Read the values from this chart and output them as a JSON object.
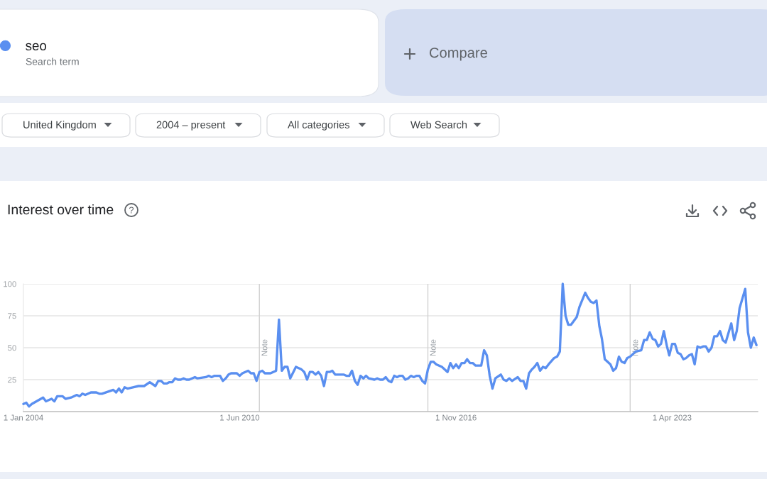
{
  "chart_data": {
    "type": "line",
    "title": "Interest over time",
    "series": [
      {
        "name": "seo",
        "color": "#5a8ff0",
        "x": [
          "2004-01",
          "2004-02",
          "2004-03",
          "2004-04",
          "2004-08",
          "2004-09",
          "2004-11",
          "2004-12",
          "2005-01",
          "2005-03",
          "2005-04",
          "2005-06",
          "2005-08",
          "2005-09",
          "2005-10",
          "2005-11",
          "2006-01",
          "2006-03",
          "2006-04",
          "2006-05",
          "2006-09",
          "2006-10",
          "2006-11",
          "2006-12",
          "2007-01",
          "2007-02",
          "2007-04",
          "2007-06",
          "2007-08",
          "2007-10",
          "2007-12",
          "2008-01",
          "2008-02",
          "2008-03",
          "2008-04",
          "2008-05",
          "2008-06",
          "2008-07",
          "2008-08",
          "2008-09",
          "2008-10",
          "2008-11",
          "2008-12",
          "2009-02",
          "2009-03",
          "2009-06",
          "2009-07",
          "2009-08",
          "2009-09",
          "2009-11",
          "2009-12",
          "2010-01",
          "2010-02",
          "2010-03",
          "2010-05",
          "2010-06",
          "2010-07",
          "2010-09",
          "2010-10",
          "2010-11",
          "2010-12",
          "2011-01",
          "2011-02",
          "2011-03",
          "2011-05",
          "2011-07",
          "2011-08",
          "2011-09",
          "2011-10",
          "2011-11",
          "2011-12",
          "2012-02",
          "2012-04",
          "2012-05",
          "2012-06",
          "2012-07",
          "2012-08",
          "2012-09",
          "2012-10",
          "2012-11",
          "2012-12",
          "2013-01",
          "2013-02",
          "2013-03",
          "2013-04",
          "2013-05",
          "2013-07",
          "2013-08",
          "2013-09",
          "2013-10",
          "2013-11",
          "2013-12",
          "2014-01",
          "2014-02",
          "2014-03",
          "2014-04",
          "2014-06",
          "2014-07",
          "2014-08",
          "2014-09",
          "2014-10",
          "2014-11",
          "2014-12",
          "2015-01",
          "2015-02",
          "2015-03",
          "2015-04",
          "2015-05",
          "2015-06",
          "2015-07",
          "2015-08",
          "2015-09",
          "2015-10",
          "2015-11",
          "2015-12",
          "2016-01",
          "2016-02",
          "2016-03",
          "2016-04",
          "2016-06",
          "2016-08",
          "2016-09",
          "2016-10",
          "2016-11",
          "2016-12",
          "2017-01",
          "2017-02",
          "2017-03",
          "2017-04",
          "2017-05",
          "2017-06",
          "2017-08",
          "2017-09",
          "2017-10",
          "2017-11",
          "2017-12",
          "2018-01",
          "2018-03",
          "2018-04",
          "2018-05",
          "2018-06",
          "2018-07",
          "2018-09",
          "2018-10",
          "2018-11",
          "2018-12",
          "2019-01",
          "2019-02",
          "2019-03",
          "2019-04",
          "2019-05",
          "2019-06",
          "2019-07",
          "2019-08",
          "2019-10",
          "2019-11",
          "2019-12",
          "2020-01",
          "2020-02",
          "2020-03",
          "2020-04",
          "2020-06",
          "2020-07",
          "2020-09",
          "2020-10",
          "2020-11",
          "2020-12",
          "2021-01",
          "2021-02",
          "2021-03",
          "2021-04",
          "2021-05",
          "2021-06",
          "2021-07",
          "2021-08",
          "2021-09",
          "2021-10",
          "2021-11",
          "2021-12",
          "2022-01",
          "2022-03",
          "2022-05",
          "2022-06",
          "2022-07",
          "2022-08",
          "2022-09",
          "2022-10",
          "2022-11",
          "2022-12",
          "2023-01",
          "2023-02",
          "2023-03",
          "2023-04",
          "2023-05",
          "2023-06",
          "2023-07",
          "2023-08",
          "2023-09",
          "2023-10",
          "2023-11",
          "2023-12",
          "2024-01",
          "2024-02",
          "2024-03",
          "2024-04",
          "2024-05",
          "2024-06",
          "2024-07",
          "2024-08",
          "2024-09",
          "2024-10",
          "2024-11",
          "2025-01",
          "2025-02",
          "2025-03",
          "2025-04",
          "2025-06",
          "2025-07",
          "2025-08",
          "2025-09",
          "2025-10"
        ],
        "values": [
          6,
          7,
          4,
          6,
          11,
          8,
          10,
          8,
          12,
          12,
          10,
          11,
          13,
          12,
          14,
          13,
          15,
          15,
          14,
          14,
          17,
          15,
          18,
          15,
          19,
          18,
          19,
          20,
          20,
          23,
          20,
          24,
          24,
          22,
          22,
          23,
          23,
          26,
          25,
          25,
          26,
          25,
          25,
          27,
          26,
          27,
          28,
          27,
          28,
          28,
          24,
          26,
          29,
          30,
          30,
          28,
          30,
          32,
          30,
          30,
          24,
          31,
          32,
          30,
          30,
          32,
          72,
          32,
          35,
          35,
          26,
          35,
          33,
          31,
          25,
          31,
          31,
          29,
          31,
          28,
          20,
          31,
          31,
          32,
          29,
          29,
          29,
          28,
          28,
          32,
          24,
          21,
          28,
          26,
          28,
          26,
          25,
          26,
          25,
          25,
          27,
          24,
          23,
          28,
          27,
          28,
          28,
          25,
          26,
          28,
          27,
          28,
          28,
          24,
          22,
          33,
          39,
          39,
          37,
          35,
          31,
          38,
          34,
          37,
          34,
          38,
          38,
          41,
          38,
          38,
          36,
          36,
          48,
          44,
          28,
          18,
          26,
          29,
          25,
          24,
          26,
          24,
          27,
          24,
          24,
          18,
          30,
          33,
          35,
          38,
          32,
          35,
          34,
          37,
          42,
          43,
          47,
          100,
          75,
          68,
          68,
          74,
          82,
          93,
          89,
          86,
          85,
          87,
          67,
          57,
          41,
          39,
          37,
          32,
          34,
          43,
          39,
          38,
          42,
          43,
          47,
          48,
          56,
          56,
          62,
          57,
          56,
          51,
          53,
          63,
          52,
          44,
          53,
          53,
          46,
          45,
          41,
          42,
          44,
          45,
          37,
          51,
          50,
          51,
          51,
          47,
          50,
          59,
          59,
          63,
          56,
          54,
          69,
          56,
          63,
          81,
          96,
          62,
          50,
          58,
          52
        ]
      }
    ],
    "xlim": [
      "2004-01-01",
      "2025-10-15"
    ],
    "xticks": [
      {
        "value": "2004-01-01",
        "label": "1 Jan 2004"
      },
      {
        "value": "2010-06-01",
        "label": "1 Jun 2010"
      },
      {
        "value": "2016-11-01",
        "label": "1 Nov 2016"
      },
      {
        "value": "2023-04-01",
        "label": "1 Apr 2023"
      }
    ],
    "ylim": [
      0,
      100
    ],
    "yticks": [
      25,
      50,
      75,
      100
    ],
    "grid": "y",
    "legend": "top left",
    "line_style": "solid",
    "ref_lines": [
      {
        "axis": "x",
        "value": "2011-01-01",
        "label": "Note",
        "color": "#d0d0d0"
      },
      {
        "axis": "x",
        "value": "2016-01-01",
        "label": "Note",
        "color": "#d0d0d0"
      },
      {
        "axis": "x",
        "value": "2022-01-01",
        "label": "Note",
        "color": "#d0d0d0"
      }
    ],
    "annotations": [
      "Search term",
      "Compare",
      "United Kingdom",
      "2004 – present",
      "All categories",
      "Web Search"
    ]
  }
}
